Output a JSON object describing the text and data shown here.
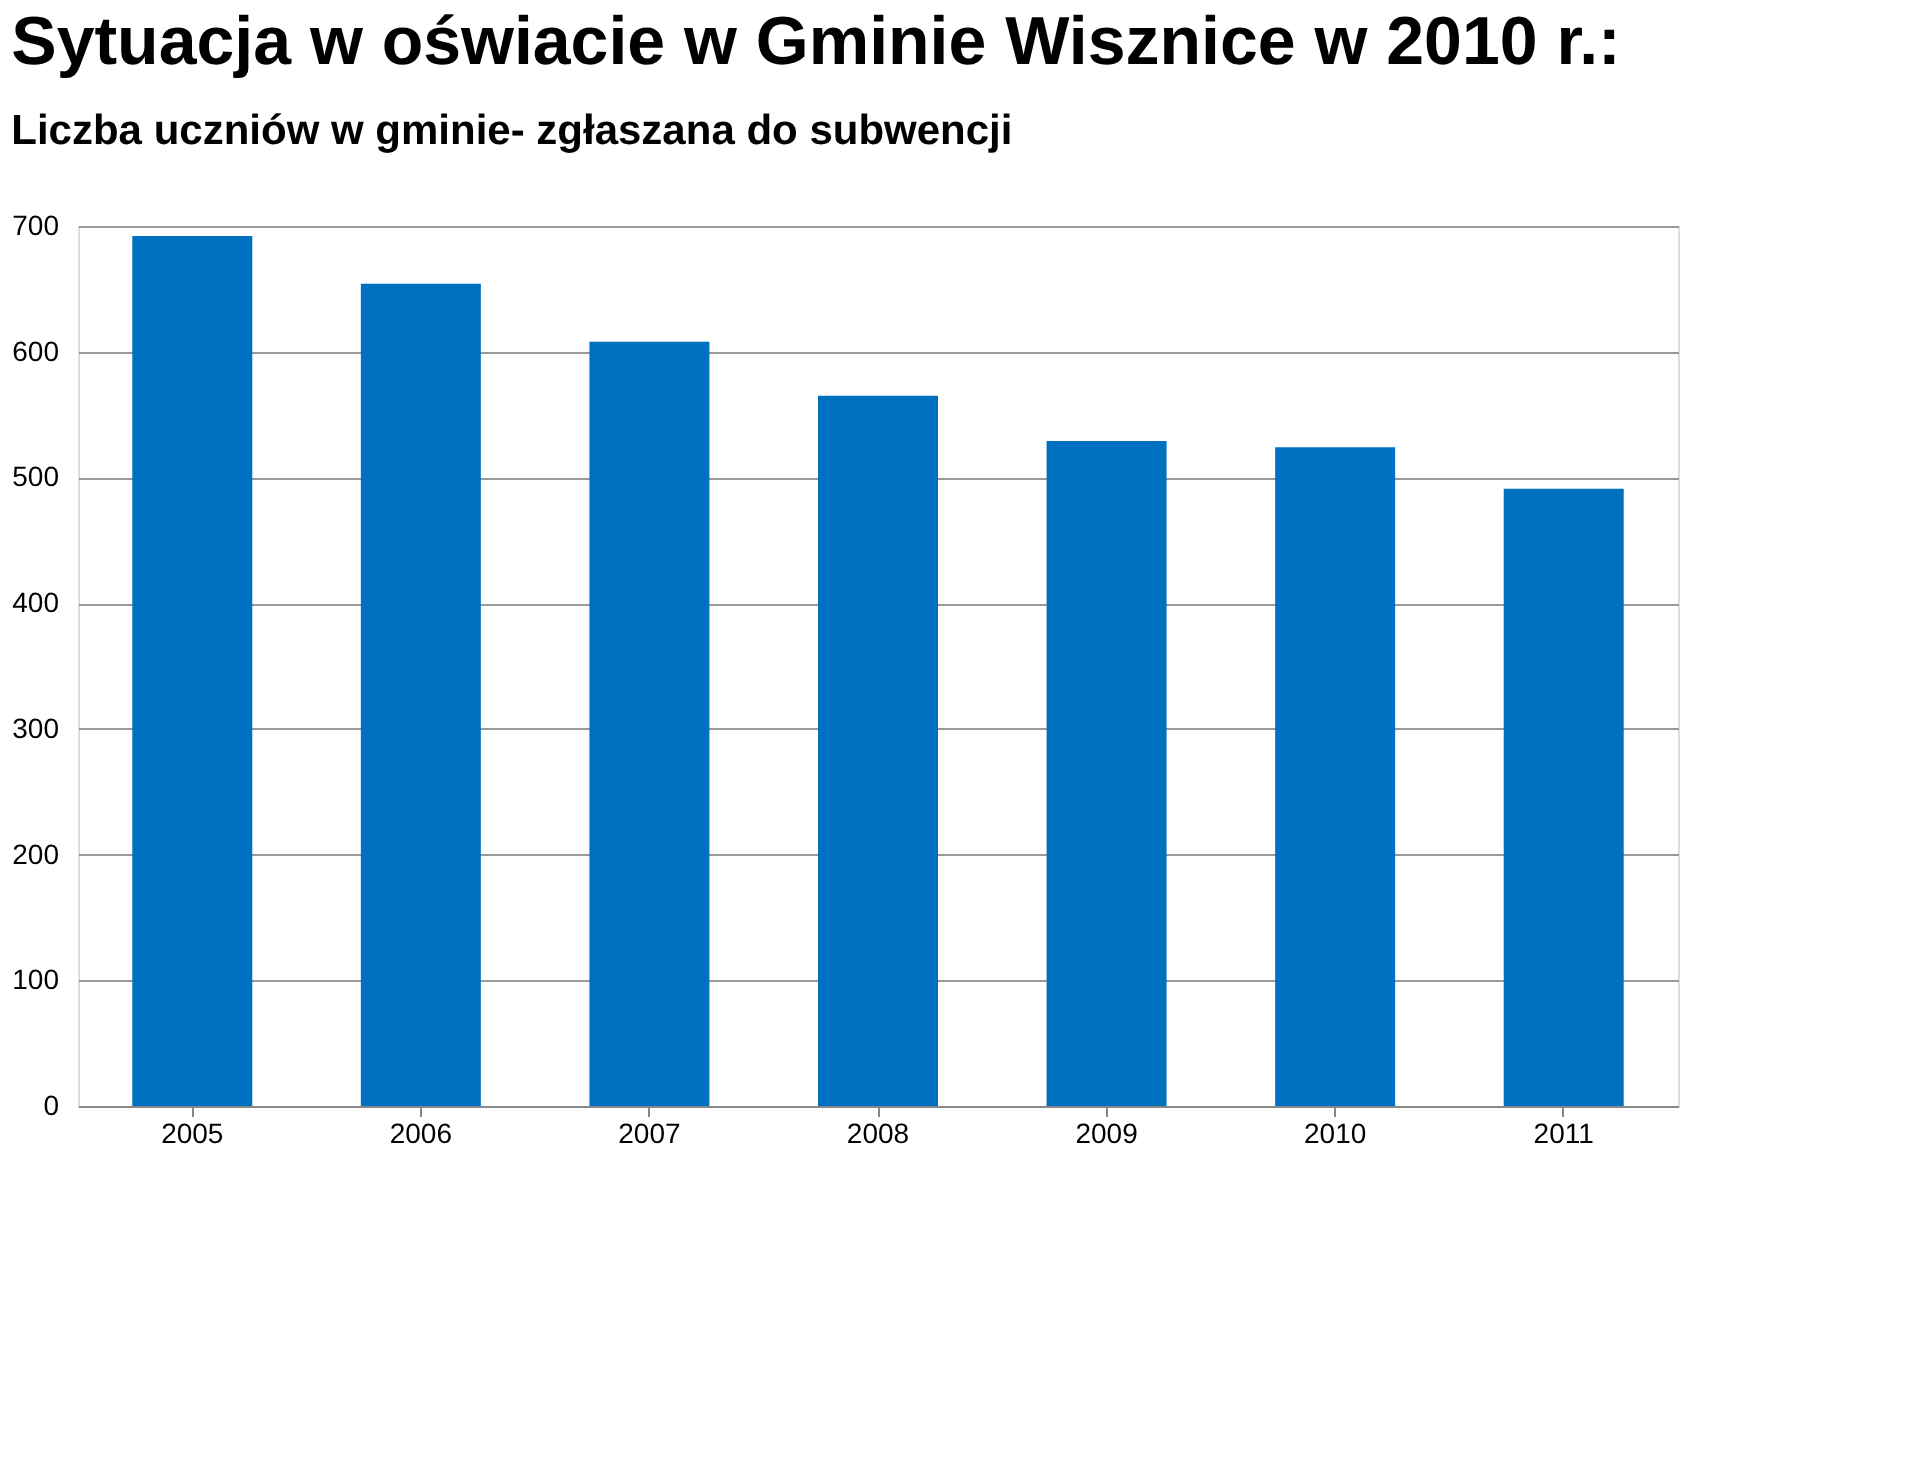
{
  "chart_data": {
    "type": "bar",
    "title": "Sytuacja w oświacie w Gminie Wisznice w 2010 r.:",
    "subtitle": "Liczba uczniów w gminie- zgłaszana do subwencji",
    "categories": [
      "2005",
      "2006",
      "2007",
      "2008",
      "2009",
      "2010",
      "2011"
    ],
    "values": [
      692,
      654,
      608,
      565,
      529,
      524,
      491
    ],
    "color": "#0070c0",
    "ylim": [
      0,
      700
    ],
    "yticks": [
      0,
      100,
      200,
      300,
      400,
      500,
      600,
      700
    ],
    "grid": "y"
  }
}
